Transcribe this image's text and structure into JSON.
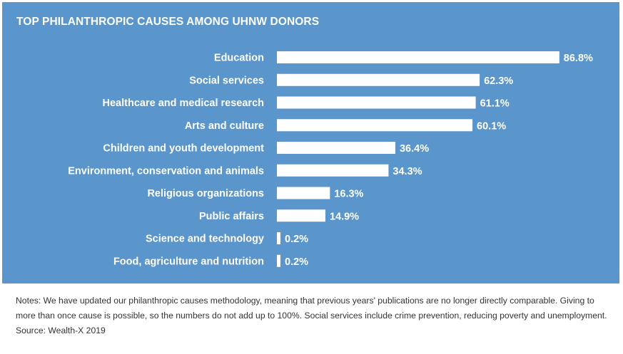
{
  "chart_data": {
    "type": "bar",
    "orientation": "horizontal",
    "title": "TOP PHILANTHROPIC CAUSES AMONG UHNW DONORS",
    "categories": [
      "Education",
      "Social services",
      "Healthcare and medical research",
      "Arts and culture",
      "Children and youth development",
      "Environment, conservation and animals",
      "Religious organizations",
      "Public affairs",
      "Science and technology",
      "Food, agriculture and nutrition"
    ],
    "values": [
      86.8,
      62.3,
      61.1,
      60.1,
      36.4,
      34.3,
      16.3,
      14.9,
      0.2,
      0.2
    ],
    "data_labels": [
      "86.8%",
      "62.3%",
      "61.1%",
      "60.1%",
      "36.4%",
      "34.3%",
      "16.3%",
      "14.9%",
      "0.2%",
      "0.2%"
    ],
    "unit": "%",
    "xlabel": "",
    "ylabel": "",
    "xlim": [
      0,
      100
    ],
    "grid": false,
    "legend": "none",
    "colors": {
      "background": "#5a96cb",
      "bar": "#ffffff",
      "text": "#ffffff"
    }
  },
  "notes": {
    "text": "Notes: We have updated our philanthropic causes methodology, meaning that previous years' publications are no longer directly comparable. Giving to more than once cause is possible, so the numbers do not add up to 100%. Social services include crime prevention, reducing poverty and unemployment.",
    "source": "Source: Wealth-X 2019"
  }
}
